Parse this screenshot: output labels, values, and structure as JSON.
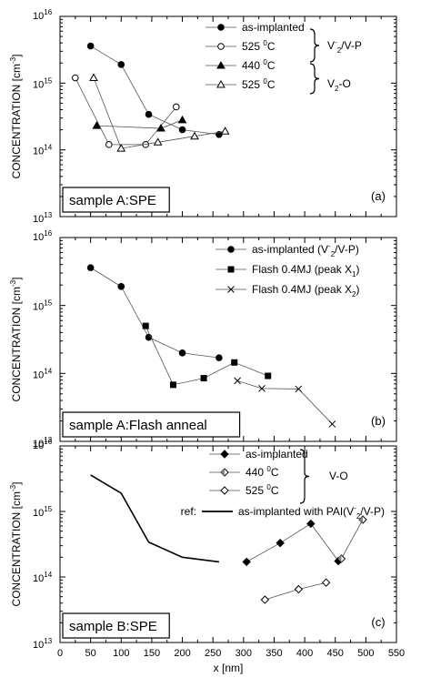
{
  "chart_data": [
    {
      "type": "line",
      "panel_label": "(a)",
      "sample_label": "sample A:SPE",
      "ylabel": "CONCENTRATION [cm",
      "ylabel_sup": "-3",
      "ylabel_end": "]",
      "yscale": "log",
      "ylim": [
        10000000000000.0,
        1e+16
      ],
      "y_ticks": [
        {
          "base": "10",
          "exp": "13"
        },
        {
          "base": "10",
          "exp": "14"
        },
        {
          "base": "10",
          "exp": "15"
        },
        {
          "base": "10",
          "exp": "16"
        }
      ],
      "xlim": [
        0,
        550
      ],
      "series": [
        {
          "name": "as-implanted",
          "marker": "circle-filled",
          "x": [
            50,
            100,
            145,
            200,
            260
          ],
          "y": [
            3600000000000000.0,
            1900000000000000.0,
            340000000000000.0,
            200000000000000.0,
            170000000000000.0
          ]
        },
        {
          "name": "525 °C",
          "marker": "circle-open",
          "x": [
            25,
            80,
            140,
            190
          ],
          "y": [
            1200000000000000.0,
            120000000000000.0,
            120000000000000.0,
            440000000000000.0
          ]
        },
        {
          "name": "440 °C",
          "marker": "triangle-filled",
          "x": [
            60,
            165,
            200
          ],
          "y": [
            230000000000000.0,
            210000000000000.0,
            280000000000000.0
          ]
        },
        {
          "name": "525 °C",
          "marker": "triangle-open",
          "x": [
            55,
            100,
            160,
            220,
            270
          ],
          "y": [
            1200000000000000.0,
            105000000000000.0,
            130000000000000.0,
            160000000000000.0,
            190000000000000.0
          ]
        }
      ],
      "legend_groups": [
        {
          "base": "V",
          "sub": "2",
          "sup": "-",
          "rest": "/V-P"
        },
        {
          "base": "V",
          "sub": "2",
          "sup": "",
          "rest": "-O"
        }
      ]
    },
    {
      "type": "line",
      "panel_label": "(b)",
      "sample_label": "sample A:Flash anneal",
      "ylabel": "CONCENTRATION [cm",
      "ylabel_sup": "-3",
      "ylabel_end": "]",
      "yscale": "log",
      "ylim": [
        10000000000000.0,
        1e+16
      ],
      "y_ticks": [
        {
          "base": "10",
          "exp": "13"
        },
        {
          "base": "10",
          "exp": "14"
        },
        {
          "base": "10",
          "exp": "15"
        },
        {
          "base": "10",
          "exp": "16"
        }
      ],
      "xlim": [
        0,
        550
      ],
      "series": [
        {
          "name": "as-implanted (V",
          "name_sup": "-",
          "name_sub": "2",
          "name_end": "/V-P)",
          "marker": "circle-filled",
          "x": [
            50,
            100,
            145,
            200,
            260
          ],
          "y": [
            3600000000000000.0,
            1900000000000000.0,
            340000000000000.0,
            200000000000000.0,
            170000000000000.0
          ]
        },
        {
          "name": "Flash 0.4MJ  (peak X",
          "name_sub": "1",
          "name_end": ")",
          "marker": "square-filled",
          "x": [
            140,
            185,
            235,
            285,
            340
          ],
          "y": [
            500000000000000.0,
            68000000000000.0,
            85000000000000.0,
            145000000000000.0,
            92000000000000.0
          ]
        },
        {
          "name": "Flash 0.4MJ  (peak X",
          "name_sub": "2",
          "name_end": ")",
          "marker": "cross",
          "x": [
            290,
            330,
            390,
            445
          ],
          "y": [
            78000000000000.0,
            60000000000000.0,
            59000000000000.0,
            18000000000000.0
          ]
        }
      ]
    },
    {
      "type": "line",
      "panel_label": "(c)",
      "sample_label": "sample B:SPE",
      "ylabel": "CONCENTRATION [cm",
      "ylabel_sup": "-3",
      "ylabel_end": "]",
      "xlabel": "x [nm]",
      "yscale": "log",
      "ylim": [
        10000000000000.0,
        1e+16
      ],
      "y_ticks": [
        {
          "base": "10",
          "exp": "13"
        },
        {
          "base": "10",
          "exp": "14"
        },
        {
          "base": "10",
          "exp": "15"
        },
        {
          "base": "10",
          "exp": "16"
        }
      ],
      "xlim": [
        0,
        550
      ],
      "x_ticks": [
        "0",
        "50",
        "100",
        "150",
        "200",
        "250",
        "300",
        "350",
        "400",
        "450",
        "500",
        "550"
      ],
      "x_tick_values": [
        0,
        50,
        100,
        150,
        200,
        250,
        300,
        350,
        400,
        450,
        500,
        550
      ],
      "series": [
        {
          "name": "as-implanted",
          "marker": "diamond-filled",
          "x": [
            305,
            360,
            410,
            455
          ],
          "y": [
            170000000000000.0,
            330000000000000.0,
            650000000000000.0,
            175000000000000.0
          ]
        },
        {
          "name": "440 °C",
          "marker": "diamond-half",
          "x": [
            460,
            495
          ],
          "y": [
            190000000000000.0,
            750000000000000.0
          ]
        },
        {
          "name": "525 °C",
          "marker": "diamond-open",
          "x": [
            335,
            390,
            435
          ],
          "y": [
            45000000000000.0,
            65000000000000.0,
            82000000000000.0
          ]
        },
        {
          "name": "as-implanted with PAI(V",
          "name_sup": "-",
          "name_sub": "2",
          "name_end": "/V-P)",
          "marker": "none",
          "x": [
            50,
            100,
            145,
            200,
            260
          ],
          "y": [
            3600000000000000.0,
            1900000000000000.0,
            340000000000000.0,
            200000000000000.0,
            170000000000000.0
          ]
        }
      ],
      "legend_group": "V-O",
      "legend_ref": "ref:"
    }
  ]
}
